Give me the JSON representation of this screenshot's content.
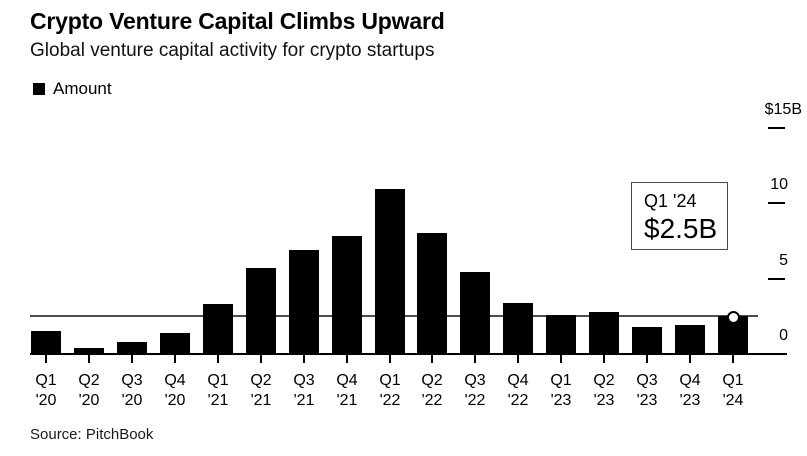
{
  "header": {
    "title": "Crypto Venture Capital Climbs Upward",
    "subtitle": "Global venture capital activity for crypto startups"
  },
  "legend": {
    "label": "Amount",
    "swatch_color": "#000000"
  },
  "annotation": {
    "label": "Q1 '24",
    "value": "$2.5B"
  },
  "source": "Source: PitchBook",
  "colors": {
    "bar": "#000000",
    "axis": "#000000",
    "reference_line": "#4d4d4d",
    "background": "#ffffff"
  },
  "chart_data": {
    "type": "bar",
    "title": "Crypto Venture Capital Climbs Upward",
    "subtitle": "Global venture capital activity for crypto startups",
    "series_name": "Amount",
    "categories": [
      "Q1 '20",
      "Q2 '20",
      "Q3 '20",
      "Q4 '20",
      "Q1 '21",
      "Q2 '21",
      "Q3 '21",
      "Q4 '21",
      "Q1 '22",
      "Q2 '22",
      "Q3 '22",
      "Q4 '22",
      "Q1 '23",
      "Q2 '23",
      "Q3 '23",
      "Q4 '23",
      "Q1 '24"
    ],
    "values": [
      1.5,
      0.4,
      0.8,
      1.4,
      3.3,
      5.7,
      6.9,
      7.8,
      10.9,
      8.0,
      5.4,
      3.4,
      2.6,
      2.8,
      1.8,
      1.9,
      2.5
    ],
    "value_unit": "$B",
    "y_axis": {
      "side": "right",
      "ticks": [
        {
          "label": "$15B",
          "value": 15
        },
        {
          "label": "10",
          "value": 10
        },
        {
          "label": "5",
          "value": 5
        },
        {
          "label": "0",
          "value": 0
        }
      ],
      "ylim": [
        0,
        16
      ]
    },
    "reference_line": {
      "value": 2.5,
      "note": "horizontal rule at latest quarter value with open circle marker on last bar"
    },
    "legend_position": "top-left",
    "grid": false
  }
}
